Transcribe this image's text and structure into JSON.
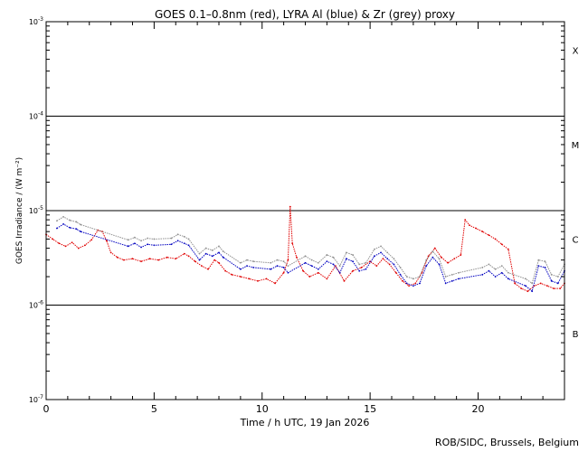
{
  "credit": "ROB/SIDC, Brussels, Belgium",
  "chart_data": {
    "type": "scatter",
    "title": "GOES 0.1–0.8nm (red), LYRA Al (blue) & Zr (grey) proxy",
    "xlabel": "Time / h UTC, 19 Jan 2026",
    "ylabel": "GOES Irradiance / (W m⁻²)",
    "xlim": [
      0,
      24
    ],
    "ylim": [
      1e-07,
      0.001
    ],
    "yscale": "log",
    "x_ticks": [
      0,
      5,
      10,
      15,
      20
    ],
    "x_tick_labels": [
      "0",
      "5",
      "10",
      "15",
      "20"
    ],
    "y_ticks": [
      1e-07,
      1e-06,
      1e-05,
      0.0001,
      0.001
    ],
    "y_tick_labels": [
      {
        "base": "10",
        "exp": "-7"
      },
      {
        "base": "10",
        "exp": "-6"
      },
      {
        "base": "10",
        "exp": "-5"
      },
      {
        "base": "10",
        "exp": "-4"
      },
      {
        "base": "10",
        "exp": "-3"
      }
    ],
    "flare_class_lines": [
      1e-06,
      1e-05,
      0.0001
    ],
    "flare_classes": [
      {
        "label": "X",
        "value": 0.0005
      },
      {
        "label": "M",
        "value": 5e-05
      },
      {
        "label": "C",
        "value": 5e-06
      },
      {
        "label": "B",
        "value": 5e-07
      }
    ],
    "series": [
      {
        "color": "#e00000",
        "x": [
          0.0,
          0.3,
          0.6,
          0.9,
          1.2,
          1.5,
          1.8,
          2.1,
          2.4,
          2.6,
          2.8,
          3.0,
          3.3,
          3.6,
          4.0,
          4.4,
          4.8,
          5.2,
          5.6,
          6.0,
          6.4,
          6.6,
          6.9,
          7.2,
          7.5,
          7.8,
          8.0,
          8.3,
          8.6,
          9.0,
          9.4,
          9.8,
          10.2,
          10.6,
          11.0,
          11.2,
          11.3,
          11.4,
          11.6,
          11.9,
          12.2,
          12.6,
          13.0,
          13.4,
          13.8,
          14.2,
          14.6,
          15.0,
          15.3,
          15.6,
          15.9,
          16.2,
          16.5,
          16.8,
          17.1,
          17.4,
          17.7,
          18.0,
          18.3,
          18.6,
          18.9,
          19.2,
          19.4,
          19.6,
          19.9,
          20.2,
          20.5,
          20.8,
          21.1,
          21.4,
          21.7,
          22.0,
          22.3,
          22.6,
          22.9,
          23.2,
          23.5,
          23.8,
          24.0
        ],
        "y": [
          5.6e-06,
          5e-06,
          4.5e-06,
          4.2e-06,
          4.6e-06,
          4e-06,
          4.3e-06,
          4.9e-06,
          6.2e-06,
          6e-06,
          4.8e-06,
          3.6e-06,
          3.2e-06,
          3e-06,
          3.1e-06,
          2.9e-06,
          3.1e-06,
          3e-06,
          3.2e-06,
          3.1e-06,
          3.5e-06,
          3.3e-06,
          2.9e-06,
          2.6e-06,
          2.4e-06,
          3e-06,
          2.8e-06,
          2.3e-06,
          2.1e-06,
          2e-06,
          1.9e-06,
          1.8e-06,
          1.9e-06,
          1.7e-06,
          2.2e-06,
          3e-06,
          1.1e-05,
          4.5e-06,
          3.2e-06,
          2.3e-06,
          2e-06,
          2.2e-06,
          1.9e-06,
          2.6e-06,
          1.8e-06,
          2.3e-06,
          2.5e-06,
          2.9e-06,
          2.6e-06,
          3.1e-06,
          2.7e-06,
          2.2e-06,
          1.8e-06,
          1.6e-06,
          1.7e-06,
          2.2e-06,
          3.3e-06,
          4e-06,
          3.2e-06,
          2.8e-06,
          3.1e-06,
          3.4e-06,
          8e-06,
          7e-06,
          6.5e-06,
          6e-06,
          5.5e-06,
          5e-06,
          4.4e-06,
          3.9e-06,
          1.7e-06,
          1.5e-06,
          1.4e-06,
          1.6e-06,
          1.7e-06,
          1.6e-06,
          1.5e-06,
          1.5e-06,
          1.7e-06
        ]
      },
      {
        "color": "#0000c0",
        "x": [
          0.5,
          0.8,
          1.1,
          1.4,
          1.6,
          3.8,
          4.1,
          4.4,
          4.7,
          5.0,
          5.8,
          6.1,
          6.4,
          6.6,
          7.1,
          7.4,
          7.7,
          8.0,
          8.2,
          9.0,
          9.3,
          9.6,
          10.4,
          10.7,
          11.0,
          11.2,
          12.0,
          12.3,
          12.6,
          13.0,
          13.3,
          13.6,
          13.9,
          14.2,
          14.5,
          14.8,
          15.2,
          15.5,
          15.8,
          16.1,
          16.4,
          16.7,
          17.0,
          17.3,
          17.6,
          17.9,
          18.2,
          18.5,
          18.8,
          19.1,
          20.2,
          20.5,
          20.8,
          21.1,
          21.4,
          22.2,
          22.5,
          22.8,
          23.1,
          23.4,
          23.7,
          24.0
        ],
        "y": [
          6.5e-06,
          7.2e-06,
          6.6e-06,
          6.4e-06,
          6e-06,
          4.2e-06,
          4.5e-06,
          4.1e-06,
          4.4e-06,
          4.3e-06,
          4.4e-06,
          4.8e-06,
          4.5e-06,
          4.3e-06,
          3e-06,
          3.5e-06,
          3.3e-06,
          3.6e-06,
          3.2e-06,
          2.4e-06,
          2.6e-06,
          2.5e-06,
          2.4e-06,
          2.6e-06,
          2.5e-06,
          2.2e-06,
          2.8e-06,
          2.6e-06,
          2.4e-06,
          2.9e-06,
          2.7e-06,
          2.2e-06,
          3.1e-06,
          2.9e-06,
          2.3e-06,
          2.4e-06,
          3.3e-06,
          3.6e-06,
          3.1e-06,
          2.7e-06,
          2.1e-06,
          1.7e-06,
          1.6e-06,
          1.7e-06,
          2.6e-06,
          3.2e-06,
          2.7e-06,
          1.7e-06,
          1.8e-06,
          1.9e-06,
          2.1e-06,
          2.3e-06,
          2e-06,
          2.2e-06,
          1.9e-06,
          1.6e-06,
          1.4e-06,
          2.6e-06,
          2.5e-06,
          1.8e-06,
          1.7e-06,
          2.3e-06
        ]
      },
      {
        "color": "#909090",
        "x": [
          0.5,
          0.8,
          1.1,
          1.4,
          1.6,
          3.8,
          4.1,
          4.4,
          4.7,
          5.0,
          5.8,
          6.1,
          6.4,
          6.6,
          7.1,
          7.4,
          7.7,
          8.0,
          8.2,
          9.0,
          9.3,
          9.6,
          10.4,
          10.7,
          11.0,
          11.2,
          12.0,
          12.3,
          12.6,
          13.0,
          13.3,
          13.6,
          13.9,
          14.2,
          14.5,
          14.8,
          15.2,
          15.5,
          15.8,
          16.1,
          16.4,
          16.7,
          17.0,
          17.3,
          17.6,
          17.9,
          18.2,
          18.5,
          18.8,
          19.1,
          20.2,
          20.5,
          20.8,
          21.1,
          21.4,
          22.2,
          22.5,
          22.8,
          23.1,
          23.4,
          23.7,
          24.0
        ],
        "y": [
          7.8e-06,
          8.6e-06,
          7.9e-06,
          7.6e-06,
          7.1e-06,
          4.9e-06,
          5.2e-06,
          4.8e-06,
          5.1e-06,
          5e-06,
          5.1e-06,
          5.6e-06,
          5.3e-06,
          5e-06,
          3.5e-06,
          4e-06,
          3.8e-06,
          4.2e-06,
          3.7e-06,
          2.8e-06,
          3e-06,
          2.9e-06,
          2.8e-06,
          3e-06,
          2.9e-06,
          2.6e-06,
          3.3e-06,
          3e-06,
          2.8e-06,
          3.4e-06,
          3.2e-06,
          2.6e-06,
          3.6e-06,
          3.4e-06,
          2.7e-06,
          2.8e-06,
          3.9e-06,
          4.2e-06,
          3.6e-06,
          3.1e-06,
          2.5e-06,
          2e-06,
          1.9e-06,
          2e-06,
          3e-06,
          3.7e-06,
          3.1e-06,
          2e-06,
          2.1e-06,
          2.2e-06,
          2.5e-06,
          2.7e-06,
          2.4e-06,
          2.6e-06,
          2.2e-06,
          1.9e-06,
          1.7e-06,
          3e-06,
          2.9e-06,
          2.1e-06,
          2e-06,
          2.7e-06
        ]
      }
    ]
  }
}
